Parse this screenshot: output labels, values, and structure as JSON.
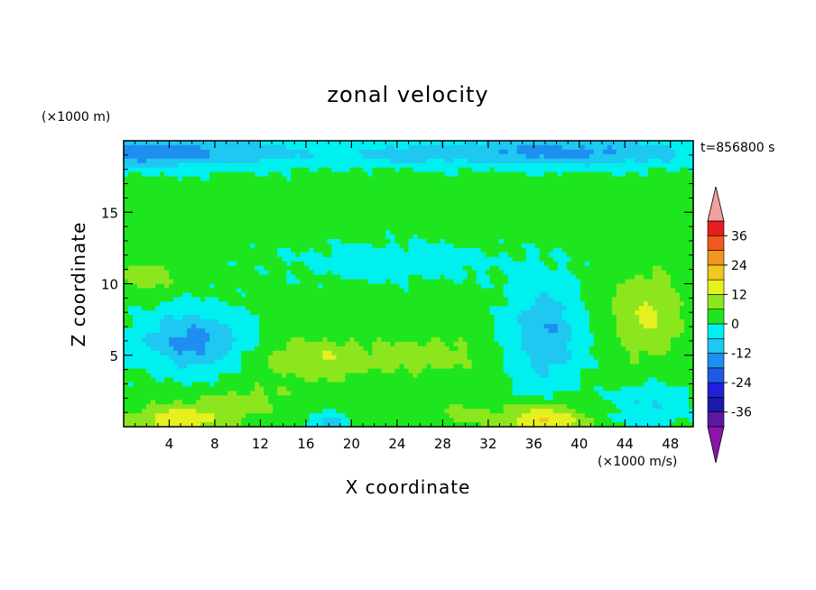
{
  "chart_data": {
    "type": "heatmap",
    "title": "zonal velocity",
    "xlabel": "X coordinate",
    "ylabel": "Z coordinate",
    "y_unit": "(×1000 m)",
    "x_unit": "(×1000 m/s)",
    "time_label": "t=856800 s",
    "xlim": [
      0,
      50
    ],
    "ylim": [
      0,
      20
    ],
    "x_ticks": [
      4,
      8,
      12,
      16,
      20,
      24,
      28,
      32,
      36,
      40,
      44,
      48
    ],
    "y_ticks": [
      5,
      10,
      15
    ],
    "colorbar": {
      "levels": [
        -42,
        -36,
        -30,
        -24,
        -18,
        -12,
        -6,
        0,
        6,
        12,
        18,
        24,
        30,
        36,
        42
      ],
      "tick_labels": [
        "-36",
        "-24",
        "-12",
        "0",
        "12",
        "24",
        "36"
      ],
      "tick_values": [
        -36,
        -24,
        -12,
        0,
        12,
        24,
        36
      ],
      "colors": [
        "#5a1aa0",
        "#1a1aa8",
        "#2020d8",
        "#1e5ae6",
        "#1e8ef0",
        "#1ec8f0",
        "#00f0f0",
        "#1ee61e",
        "#8ce61e",
        "#e6f01e",
        "#f0c81e",
        "#f0961e",
        "#f05a1e",
        "#e61e1e"
      ],
      "under_color": "#8c14aa",
      "over_color": "#f0a0a0"
    },
    "features": [
      {
        "x": 0,
        "z": 19.2,
        "sx": 16,
        "sz": 1.1,
        "amp": -18
      },
      {
        "x": 38,
        "z": 19.2,
        "sx": 14,
        "sz": 1.0,
        "amp": -16
      },
      {
        "x": 25,
        "z": 19.0,
        "sx": 3,
        "sz": 0.6,
        "amp": -4
      },
      {
        "x": 6,
        "z": 6.0,
        "sx": 4.5,
        "sz": 2.2,
        "amp": -16
      },
      {
        "x": 37,
        "z": 6.5,
        "sx": 3.2,
        "sz": 3.5,
        "amp": -14
      },
      {
        "x": 46,
        "z": 7.8,
        "sx": 3.2,
        "sz": 3.0,
        "amp": 11
      },
      {
        "x": 2,
        "z": 10.5,
        "sx": 2.5,
        "sz": 1.2,
        "amp": 8
      },
      {
        "x": 17,
        "z": 4.7,
        "sx": 5,
        "sz": 1.5,
        "amp": 10
      },
      {
        "x": 27,
        "z": 5.0,
        "sx": 4.5,
        "sz": 1.4,
        "amp": 7
      },
      {
        "x": 11,
        "z": 1.8,
        "sx": 4,
        "sz": 1.2,
        "amp": 6
      },
      {
        "x": 5,
        "z": 0.5,
        "sx": 4,
        "sz": 1.1,
        "amp": 14
      },
      {
        "x": 37,
        "z": 0.5,
        "sx": 3.5,
        "sz": 1.0,
        "amp": 17
      },
      {
        "x": 18,
        "z": 0.3,
        "sx": 1.5,
        "sz": 0.6,
        "amp": -12
      },
      {
        "x": 24,
        "z": 11.5,
        "sx": 10,
        "sz": 1.4,
        "amp": -5
      },
      {
        "x": 30,
        "z": 1.0,
        "sx": 3,
        "sz": 1.0,
        "amp": 5
      },
      {
        "x": 46,
        "z": 1.5,
        "sx": 3,
        "sz": 1.5,
        "amp": -8
      }
    ]
  }
}
